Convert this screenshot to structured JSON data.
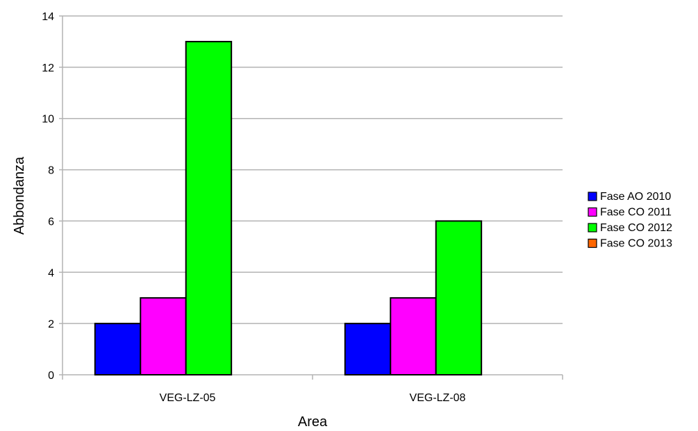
{
  "chart_data": {
    "type": "bar",
    "title": "",
    "xlabel": "Area",
    "ylabel": "Abbondanza",
    "categories": [
      "VEG-LZ-05",
      "VEG-LZ-08"
    ],
    "series": [
      {
        "name": "Fase AO 2010",
        "values": [
          2,
          2
        ],
        "color": "#0000ff"
      },
      {
        "name": "Fase CO 2011",
        "values": [
          3,
          3
        ],
        "color": "#ff00ff"
      },
      {
        "name": "Fase CO 2012",
        "values": [
          13,
          6
        ],
        "color": "#00ff00"
      },
      {
        "name": "Fase CO 2013",
        "values": [
          0,
          0
        ],
        "color": "#ff6600"
      }
    ],
    "ylim": [
      0,
      14
    ],
    "yticks": [
      "0",
      "2",
      "4",
      "6",
      "8",
      "10",
      "12",
      "14"
    ],
    "grid": true,
    "legend": "right"
  }
}
